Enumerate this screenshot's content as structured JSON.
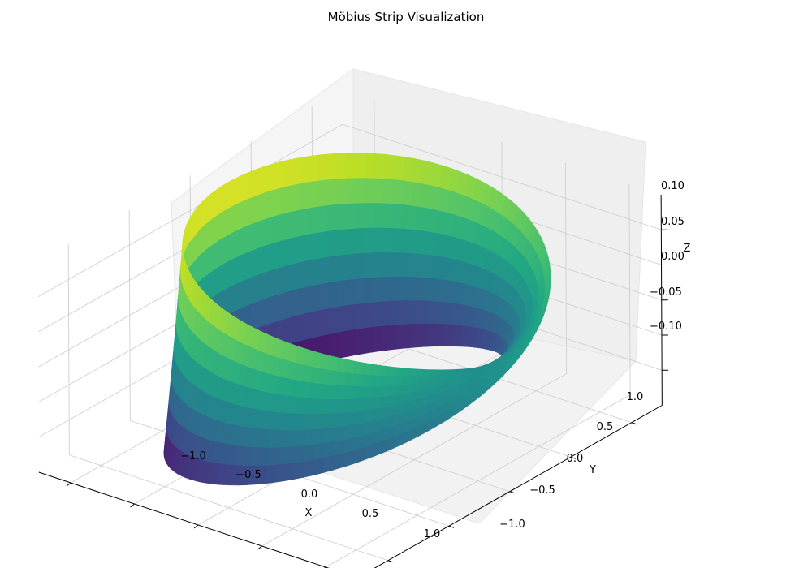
{
  "chart_data": {
    "type": "surface3d",
    "title": "Möbius Strip Visualization",
    "xlabel": "X",
    "ylabel": "Y",
    "zlabel": "Z",
    "xlim": [
      -1.25,
      1.25
    ],
    "ylim": [
      -1.25,
      1.25
    ],
    "zlim": [
      -0.15,
      0.15
    ],
    "xticks": [
      "−1.0",
      "−0.5",
      "0.0",
      "0.5",
      "1.0"
    ],
    "xtick_values": [
      -1.0,
      -0.5,
      0.0,
      0.5,
      1.0
    ],
    "yticks": [
      "−1.0",
      "−0.5",
      "0.0",
      "0.5",
      "1.0"
    ],
    "ytick_values": [
      -1.0,
      -0.5,
      0.0,
      0.5,
      1.0
    ],
    "zticks": [
      "−0.10",
      "−0.05",
      "0.00",
      "0.05",
      "0.10"
    ],
    "ztick_values": [
      -0.1,
      -0.05,
      0.0,
      0.05,
      0.1
    ],
    "surface": {
      "name": "Möbius strip",
      "radius": 1.0,
      "half_width": 0.15,
      "colormap": "viridis",
      "color_by": "z"
    },
    "grid": true,
    "pane_color": "#f2f2f2"
  }
}
